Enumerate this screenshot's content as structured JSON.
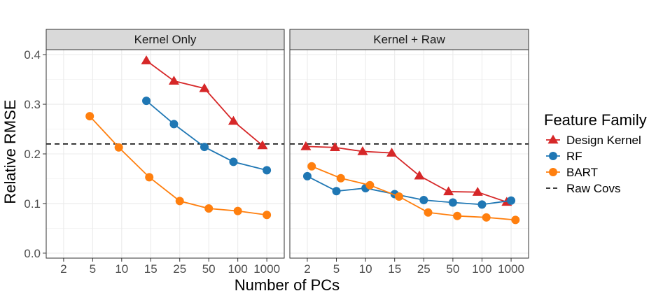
{
  "chart_data": {
    "type": "line",
    "xlabel": "Number of PCs",
    "ylabel": "Relative RMSE",
    "ylim": [
      -0.01,
      0.41
    ],
    "yticks": [
      0.0,
      0.1,
      0.2,
      0.3,
      0.4
    ],
    "ytick_labels": [
      "0.0",
      "0.1",
      "0.2",
      "0.3",
      "0.4"
    ],
    "x_categories": [
      "2",
      "5",
      "10",
      "15",
      "25",
      "50",
      "100",
      "1000"
    ],
    "reference_line": {
      "name": "Raw Covs",
      "value": 0.22,
      "style": "dashed",
      "color": "#000000"
    },
    "legend": {
      "title": "Feature Family",
      "position": "right"
    },
    "grid": true,
    "panels": [
      {
        "title": "Kernel Only",
        "series": [
          {
            "name": "Design Kernel",
            "color": "#d62728",
            "marker": "triangle",
            "points": [
              [
                3.85,
                0.388
              ],
              [
                4.8,
                0.347
              ],
              [
                5.85,
                0.332
              ],
              [
                6.85,
                0.266
              ],
              [
                7.85,
                0.217
              ]
            ]
          },
          {
            "name": "RF",
            "color": "#1f77b4",
            "marker": "circle",
            "points": [
              [
                3.85,
                0.307
              ],
              [
                4.8,
                0.26
              ],
              [
                5.85,
                0.214
              ],
              [
                6.85,
                0.184
              ],
              [
                8.0,
                0.167
              ]
            ]
          },
          {
            "name": "BART",
            "color": "#ff7f0e",
            "marker": "circle",
            "points": [
              [
                1.9,
                0.276
              ],
              [
                2.9,
                0.213
              ],
              [
                3.95,
                0.153
              ],
              [
                5.0,
                0.105
              ],
              [
                6.0,
                0.09
              ],
              [
                7.0,
                0.085
              ],
              [
                8.0,
                0.077
              ]
            ]
          }
        ]
      },
      {
        "title": "Kernel + Raw",
        "series": [
          {
            "name": "Design Kernel",
            "color": "#d62728",
            "marker": "triangle",
            "points": [
              [
                0.95,
                0.215
              ],
              [
                1.95,
                0.213
              ],
              [
                2.9,
                0.205
              ],
              [
                3.9,
                0.202
              ],
              [
                4.85,
                0.156
              ],
              [
                5.85,
                0.124
              ],
              [
                6.85,
                0.123
              ],
              [
                7.85,
                0.103
              ]
            ]
          },
          {
            "name": "RF",
            "color": "#1f77b4",
            "marker": "circle",
            "points": [
              [
                1.0,
                0.155
              ],
              [
                2.0,
                0.125
              ],
              [
                3.0,
                0.131
              ],
              [
                4.0,
                0.119
              ],
              [
                5.0,
                0.107
              ],
              [
                6.0,
                0.102
              ],
              [
                7.0,
                0.098
              ],
              [
                8.0,
                0.106
              ]
            ]
          },
          {
            "name": "BART",
            "color": "#ff7f0e",
            "marker": "circle",
            "points": [
              [
                1.15,
                0.175
              ],
              [
                2.15,
                0.151
              ],
              [
                3.15,
                0.137
              ],
              [
                4.15,
                0.114
              ],
              [
                5.15,
                0.082
              ],
              [
                6.15,
                0.075
              ],
              [
                7.15,
                0.072
              ],
              [
                8.15,
                0.067
              ]
            ]
          }
        ]
      }
    ]
  }
}
